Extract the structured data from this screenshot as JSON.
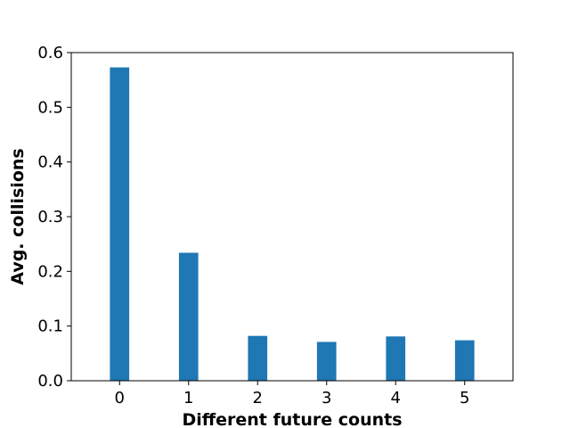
{
  "chart_data": {
    "type": "bar",
    "categories": [
      "0",
      "1",
      "2",
      "3",
      "4",
      "5"
    ],
    "values": [
      0.573,
      0.234,
      0.082,
      0.071,
      0.081,
      0.074
    ],
    "title": "",
    "xlabel": "Different future counts",
    "ylabel": "Avg. collisions",
    "ylim": [
      0,
      0.6
    ],
    "yticks": [
      "0.0",
      "0.1",
      "0.2",
      "0.3",
      "0.4",
      "0.5",
      "0.6"
    ],
    "bar_color": "#1f77b4",
    "grid": false
  }
}
